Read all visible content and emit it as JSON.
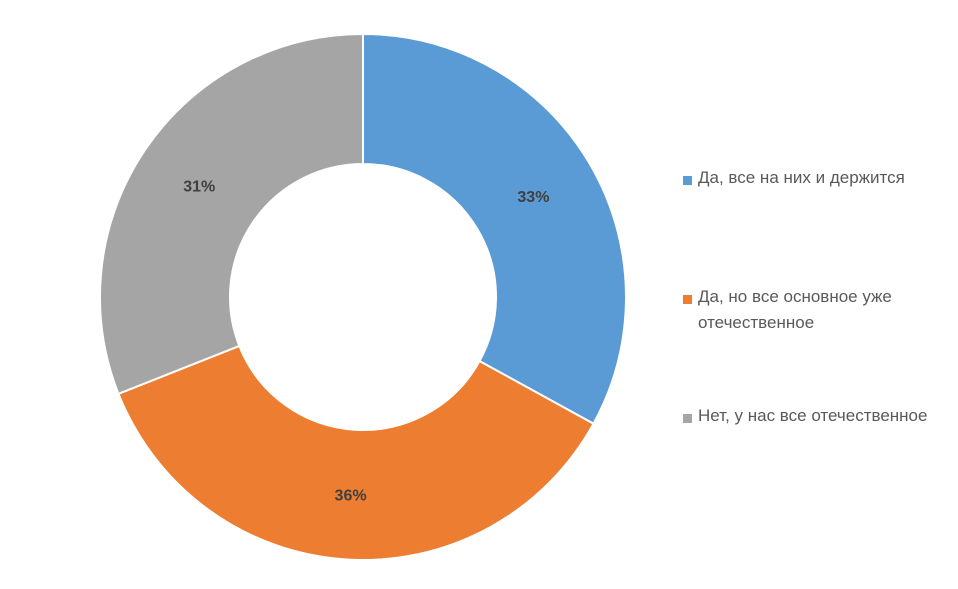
{
  "chart_data": {
    "type": "pie",
    "variant": "doughnut",
    "start_angle": "top, clockwise",
    "legend_placement": "right",
    "categories": [
      "Да, все на них и держится",
      "Да, но все основное уже отечественное",
      "Нет, у нас все отечественное"
    ],
    "values": [
      33,
      36,
      31
    ],
    "data_labels": [
      "33%",
      "36%",
      "31%"
    ],
    "colors": [
      "#5B9BD5",
      "#ED7D31",
      "#A5A5A5"
    ]
  }
}
